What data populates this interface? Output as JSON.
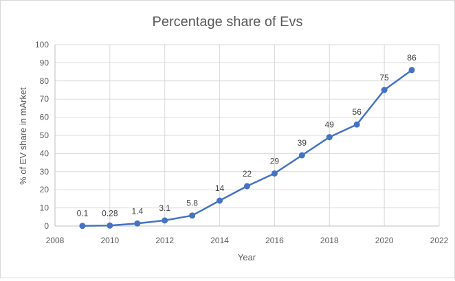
{
  "chart_data": {
    "type": "scatter",
    "title": "Percentage share of Evs",
    "xlabel": "Year",
    "ylabel": "% of EV share in mArket",
    "xlim": [
      2008,
      2022
    ],
    "ylim": [
      0,
      100
    ],
    "x_ticks": [
      2008,
      2010,
      2012,
      2014,
      2016,
      2018,
      2020,
      2022
    ],
    "y_ticks": [
      0,
      10,
      20,
      30,
      40,
      50,
      60,
      70,
      80,
      90,
      100
    ],
    "grid": true,
    "legend": "none",
    "series": [
      {
        "color": "#4472c4",
        "x": [
          2009,
          2010,
          2011,
          2012,
          2013,
          2014,
          2015,
          2016,
          2017,
          2018,
          2019,
          2020,
          2021
        ],
        "y": [
          0.1,
          0.28,
          1.4,
          3.1,
          5.8,
          14,
          22,
          29,
          39,
          49,
          56,
          75,
          86
        ],
        "labels": [
          "0.1",
          "0.28",
          "1.4",
          "3.1",
          "5.8",
          "14",
          "22",
          "29",
          "39",
          "49",
          "56",
          "75",
          "86"
        ]
      }
    ]
  }
}
